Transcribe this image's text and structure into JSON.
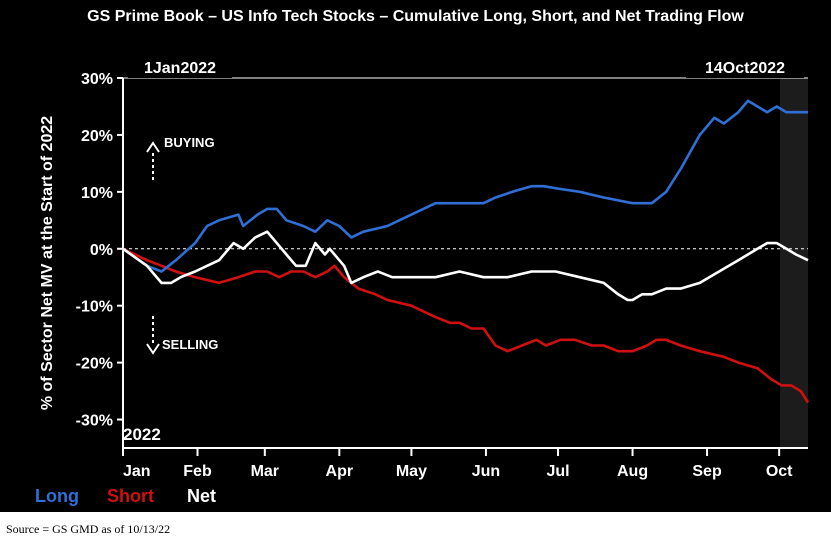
{
  "title": "GS Prime Book – US Info Tech Stocks – Cumulative Long, Short, and Net Trading Flow",
  "source": "Source = GS GMD as of 10/13/22",
  "colors": {
    "background": "#000000",
    "long": "#2f6fd6",
    "short": "#d01010",
    "net": "#ffffff"
  },
  "chart_data": {
    "type": "line",
    "title": "GS Prime Book – US Info Tech Stocks – Cumulative Long, Short, and Net Trading Flow",
    "ylabel": "% of Sector Net MV at the Start of 2022",
    "xlabel": "",
    "ylim": [
      -35,
      30
    ],
    "yticks": [
      30,
      20,
      10,
      0,
      -10,
      -20,
      -30
    ],
    "ytick_labels": [
      "30%",
      "20%",
      "10%",
      "0%",
      "-10%",
      "-20%",
      "-30%"
    ],
    "xlim": [
      0,
      285
    ],
    "xticks": [
      0,
      31,
      59,
      90,
      120,
      151,
      181,
      212,
      243,
      273
    ],
    "xtick_labels": [
      "Jan",
      "Feb",
      "Mar",
      "Apr",
      "May",
      "Jun",
      "Jul",
      "Aug",
      "Sep",
      "Oct"
    ],
    "range_start_label": "1Jan2022",
    "range_end_label": "14Oct2022",
    "year_label": "2022",
    "annotations": {
      "buying": "BUYING",
      "selling": "SELLING"
    },
    "grid": false,
    "zero_line": true,
    "legend": "bottom-left",
    "series": [
      {
        "name": "Long",
        "color": "#2f6fd6",
        "x": [
          0,
          10,
          16,
          22,
          30,
          35,
          40,
          48,
          50,
          56,
          60,
          64,
          68,
          75,
          80,
          85,
          90,
          95,
          100,
          110,
          120,
          130,
          140,
          150,
          155,
          162,
          170,
          175,
          182,
          190,
          200,
          212,
          220,
          226,
          232,
          240,
          246,
          250,
          256,
          260,
          264,
          268,
          272,
          276,
          280,
          285
        ],
        "values": [
          0,
          -3,
          -4,
          -2,
          1,
          4,
          5,
          6,
          4,
          6,
          7,
          7,
          5,
          4,
          3,
          5,
          4,
          2,
          3,
          4,
          6,
          8,
          8,
          8,
          9,
          10,
          11,
          11,
          10.5,
          10,
          9,
          8,
          8,
          10,
          14,
          20,
          23,
          22,
          24,
          26,
          25,
          24,
          25,
          24,
          24,
          24
        ]
      },
      {
        "name": "Short",
        "color": "#d01010",
        "x": [
          0,
          10,
          16,
          22,
          30,
          40,
          48,
          55,
          60,
          65,
          70,
          75,
          80,
          85,
          88,
          92,
          98,
          105,
          110,
          120,
          125,
          130,
          136,
          140,
          145,
          150,
          155,
          160,
          166,
          172,
          176,
          182,
          188,
          195,
          200,
          206,
          212,
          218,
          222,
          226,
          232,
          240,
          250,
          256,
          264,
          270,
          274,
          278,
          282,
          285
        ],
        "values": [
          0,
          -2,
          -3,
          -4,
          -5,
          -6,
          -5,
          -4,
          -4,
          -5,
          -4,
          -4,
          -5,
          -4,
          -3,
          -5,
          -7,
          -8,
          -9,
          -10,
          -11,
          -12,
          -13,
          -13,
          -14,
          -14,
          -17,
          -18,
          -17,
          -16,
          -17,
          -16,
          -16,
          -17,
          -17,
          -18,
          -18,
          -17,
          -16,
          -16,
          -17,
          -18,
          -19,
          -20,
          -21,
          -23,
          -24,
          -24,
          -25,
          -27
        ]
      },
      {
        "name": "Net",
        "color": "#ffffff",
        "x": [
          0,
          10,
          16,
          20,
          24,
          30,
          35,
          40,
          46,
          50,
          55,
          60,
          64,
          68,
          72,
          76,
          80,
          84,
          86,
          90,
          92,
          95,
          100,
          106,
          112,
          120,
          130,
          140,
          150,
          160,
          170,
          180,
          190,
          200,
          206,
          210,
          212,
          216,
          220,
          226,
          232,
          240,
          248,
          256,
          264,
          268,
          272,
          276,
          280,
          285
        ],
        "values": [
          0,
          -3,
          -6,
          -6,
          -5,
          -4,
          -3,
          -2,
          1,
          0,
          2,
          3,
          1,
          -1,
          -3,
          -3,
          1,
          -1,
          0,
          -2,
          -3,
          -6,
          -5,
          -4,
          -5,
          -5,
          -5,
          -4,
          -5,
          -5,
          -4,
          -4,
          -5,
          -6,
          -8,
          -9,
          -9,
          -8,
          -8,
          -7,
          -7,
          -6,
          -4,
          -2,
          0,
          1,
          1,
          0,
          -1,
          -2
        ]
      }
    ]
  }
}
